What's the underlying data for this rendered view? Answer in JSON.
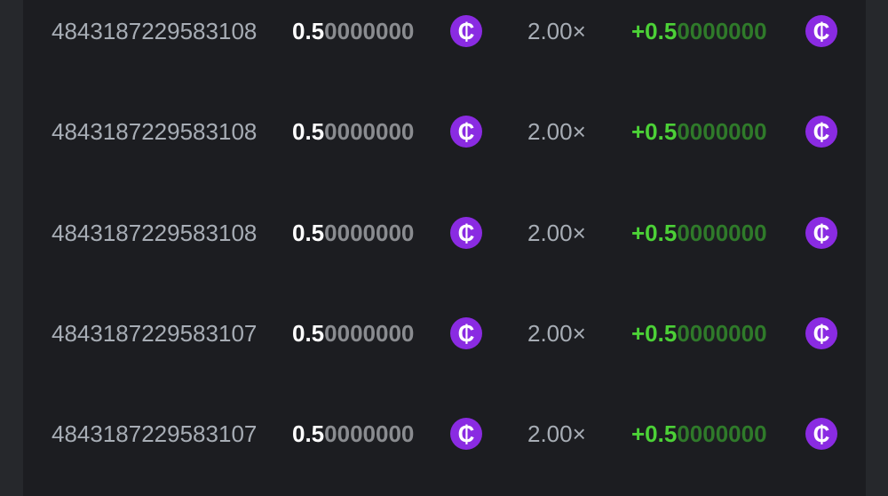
{
  "colors": {
    "accent_coin": "#8a2be2",
    "profit_green": "#4cd137",
    "background": "#1c1d21"
  },
  "coin_icon": "cent-coin-icon",
  "coin_symbol": "₵",
  "rows": [
    {
      "id": "4843187229583108",
      "amount_lead": "0.5",
      "amount_trail": "0000000",
      "multiplier": "2.00×",
      "profit_lead": "+0.5",
      "profit_trail": "0000000"
    },
    {
      "id": "4843187229583108",
      "amount_lead": "0.5",
      "amount_trail": "0000000",
      "multiplier": "2.00×",
      "profit_lead": "+0.5",
      "profit_trail": "0000000"
    },
    {
      "id": "4843187229583108",
      "amount_lead": "0.5",
      "amount_trail": "0000000",
      "multiplier": "2.00×",
      "profit_lead": "+0.5",
      "profit_trail": "0000000"
    },
    {
      "id": "4843187229583107",
      "amount_lead": "0.5",
      "amount_trail": "0000000",
      "multiplier": "2.00×",
      "profit_lead": "+0.5",
      "profit_trail": "0000000"
    },
    {
      "id": "4843187229583107",
      "amount_lead": "0.5",
      "amount_trail": "0000000",
      "multiplier": "2.00×",
      "profit_lead": "+0.5",
      "profit_trail": "0000000"
    }
  ]
}
